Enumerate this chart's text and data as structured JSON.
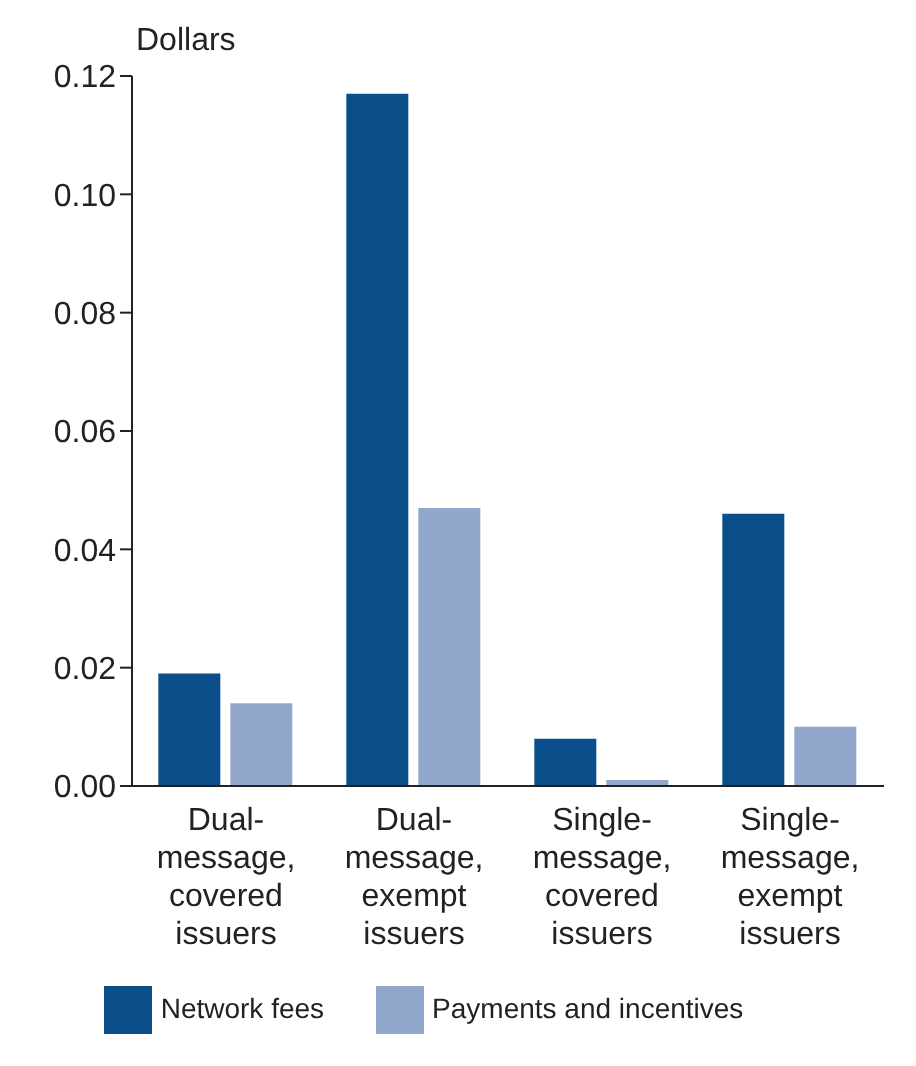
{
  "chart_data": {
    "type": "bar",
    "ylabel": "Dollars",
    "categories": [
      "Dual-message, covered issuers",
      "Dual-message, exempt issuers",
      "Single-message, covered issuers",
      "Single-message, exempt issuers"
    ],
    "series": [
      {
        "name": "Network fees",
        "color": "#0b4f8a",
        "values": [
          0.019,
          0.117,
          0.008,
          0.046
        ]
      },
      {
        "name": "Payments and incentives",
        "color": "#91a8cc",
        "values": [
          0.014,
          0.047,
          0.001,
          0.01
        ]
      }
    ],
    "ylim": [
      0,
      0.12
    ],
    "yticks": [
      {
        "value": 0,
        "label": "0.00"
      },
      {
        "value": 0.02,
        "label": "0.02"
      },
      {
        "value": 0.04,
        "label": "0.04"
      },
      {
        "value": 0.06,
        "label": "0.06"
      },
      {
        "value": 0.08,
        "label": "0.08"
      },
      {
        "value": 0.1,
        "label": "0.10"
      },
      {
        "value": 0.12,
        "label": "0.12"
      }
    ],
    "grid": false,
    "legend": "bottom"
  }
}
